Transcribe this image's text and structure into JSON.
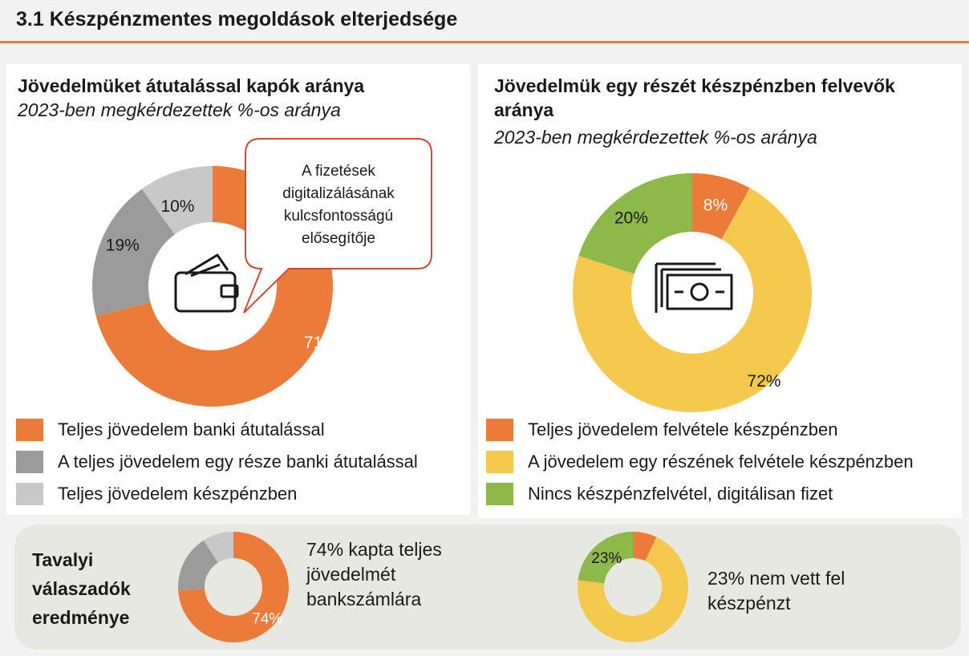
{
  "header": {
    "title": "3.1 Készpénzmentes megoldások elterjedsége",
    "accent_color": "#ec7b3a"
  },
  "left_panel": {
    "title": "Jövedelmüket átutalással kapók aránya",
    "subtitle": "2023-ben megkérdezettek %-os aránya",
    "callout": [
      "A fizetések",
      "digitalizálásának",
      "kulcsfontosságú",
      "elősegítője"
    ],
    "center_icon": "wallet-icon"
  },
  "right_panel": {
    "title_lines": [
      "Jövedelmük egy részét készpénzben felvevők",
      "aránya"
    ],
    "subtitle": "2023-ben megkérdezettek %-os aránya",
    "center_icon": "banknotes-icon"
  },
  "bottom_panel": {
    "heading_lines": [
      "Tavalyi",
      "válaszadók",
      "eredménye"
    ],
    "left_text_lines": [
      "74% kapta teljes",
      "jövedelmét",
      "bankszámlára"
    ],
    "right_text_lines": [
      "23% nem vett fel",
      "készpénzt"
    ]
  },
  "chart_data": [
    {
      "type": "pie",
      "variant": "donut",
      "categories": [
        "Teljes jövedelem banki átutalással",
        "A teljes jövedelem egy része banki átutalással",
        "Teljes jövedelem készpénzben"
      ],
      "values": [
        71,
        19,
        10
      ],
      "labels": [
        "71%",
        "19%",
        "10%"
      ],
      "colors": [
        "#ec7b3a",
        "#9b9b9b",
        "#c8c8c8"
      ],
      "legend_position": "bottom"
    },
    {
      "type": "pie",
      "variant": "donut",
      "categories": [
        "Teljes jövedelem felvétele készpénzben",
        "A jövedelem egy részének felvétele készpénzben",
        "Nincs készpénzfelvétel, digitálisan fizet"
      ],
      "values": [
        8,
        72,
        20
      ],
      "labels": [
        "8%",
        "72%",
        "20%"
      ],
      "colors": [
        "#ec7b3a",
        "#f5c94e",
        "#8db84a"
      ],
      "legend_position": "bottom"
    },
    {
      "type": "pie",
      "variant": "donut",
      "values": [
        74,
        17,
        9
      ],
      "labels": [
        "74%",
        "",
        ""
      ],
      "colors": [
        "#ec7b3a",
        "#9b9b9b",
        "#c8c8c8"
      ]
    },
    {
      "type": "pie",
      "variant": "donut",
      "values": [
        7,
        70,
        23
      ],
      "labels": [
        "",
        "",
        "23%"
      ],
      "colors": [
        "#ec7b3a",
        "#f5c94e",
        "#8db84a"
      ]
    }
  ]
}
